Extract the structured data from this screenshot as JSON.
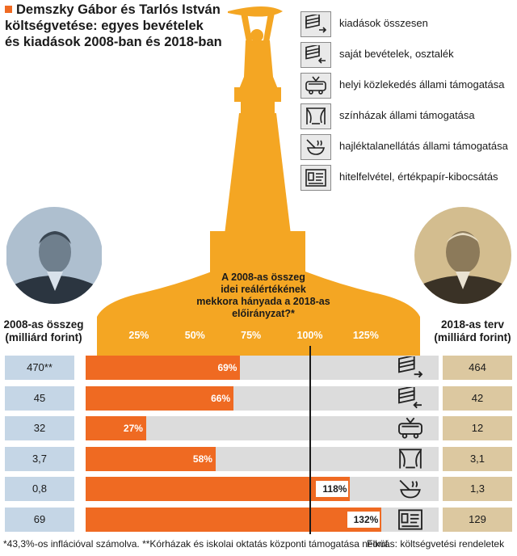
{
  "title": {
    "line1": "Demszky Gábor és Tarlós István",
    "line2": "költségvetése: egyes bevételek",
    "line3": "és kiadások 2008-ban és 2018-ban"
  },
  "legend": [
    {
      "icon": "money-out-icon",
      "label": "kiadások összesen"
    },
    {
      "icon": "money-in-icon",
      "label": "saját bevételek, osztalék"
    },
    {
      "icon": "trolleybus-icon",
      "label": "helyi közlekedés állami támogatása"
    },
    {
      "icon": "theater-curtain-icon",
      "label": "színházak állami támogatása"
    },
    {
      "icon": "soup-bowl-icon",
      "label": "hajléktalanellátás állami támogatása"
    },
    {
      "icon": "document-card-icon",
      "label": "hitelfelvétel, értékpapír-kibocsátás"
    }
  ],
  "left_header": {
    "line1": "2008-as összeg",
    "line2": "(milliárd forint)"
  },
  "right_header": {
    "line1": "2018-as terv",
    "line2": "(milliárd forint)"
  },
  "center_note": {
    "line1": "A 2008-as összeg",
    "line2": "idei reálértékének",
    "line3": "mekkora hányada a 2018-as előirányzat?*"
  },
  "colors": {
    "accent": "#ef6a22",
    "left_box": "#c5d6e6",
    "right_box": "#dcc8a0",
    "bar_bg": "#dcdcdc"
  },
  "chart_data": {
    "type": "bar",
    "orientation": "horizontal",
    "title": "A 2008-as összeg idei reálértékének mekkora hányada a 2018-as előirányzat?*",
    "x_ticks": [
      "25%",
      "50%",
      "75%",
      "100%",
      "125%"
    ],
    "xlim": [
      0,
      150
    ],
    "reference_line": 100,
    "categories": [
      "kiadások összesen",
      "saját bevételek, osztalék",
      "helyi közlekedés állami támogatása",
      "színházak állami támogatása",
      "hajléktalanellátás állami támogatása",
      "hitelfelvétel, értékpapír-kibocsátás"
    ],
    "values": [
      69,
      66,
      27,
      58,
      118,
      132
    ],
    "value_labels": [
      "69%",
      "66%",
      "27%",
      "58%",
      "118%",
      "132%"
    ],
    "row_icons": [
      "money-out-icon",
      "money-in-icon",
      "trolleybus-icon",
      "theater-curtain-icon",
      "soup-bowl-icon",
      "document-card-icon"
    ],
    "amount_2008": [
      "470**",
      "45",
      "32",
      "3,7",
      "0,8",
      "69"
    ],
    "amount_2018": [
      "464",
      "42",
      "12",
      "3,1",
      "1,3",
      "129"
    ]
  },
  "footer": {
    "note": "*43,3%-os inflációval számolva. **Kórházak és iskolai oktatás központi támogatása nélkül.",
    "source": "Forrás: költségvetési rendeletek"
  }
}
